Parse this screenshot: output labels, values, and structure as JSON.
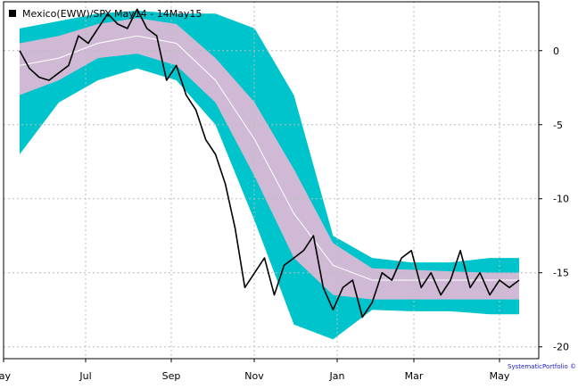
{
  "chart_data": {
    "type": "line",
    "title": "Mexico(EWW)/SPY May14 - 14May15",
    "watermark": "SystematicPortfolio ©",
    "ylim": [
      -20.8,
      3.3
    ],
    "y_ticks": [
      0,
      -5,
      -10,
      -15,
      -20
    ],
    "x_ticks": [
      "ay",
      "Jul",
      "Sep",
      "Nov",
      "Jan",
      "Mar",
      "May"
    ],
    "grid": true,
    "legend": "top-left",
    "colors": {
      "outer_band": "#00c4cc",
      "inner_band": "#cfb9d5",
      "line": "#000000",
      "mid_line": "#ffffff",
      "grid": "#bbbbbb",
      "legend_box": "#000000",
      "watermark": "#1a1acc"
    },
    "series": [
      {
        "name": "Mexico(EWW)/SPY",
        "x": [
          0,
          1,
          2,
          3,
          4,
          5,
          6,
          7,
          8,
          9,
          10,
          11,
          12,
          13,
          14,
          15,
          16,
          17,
          18,
          19,
          20,
          21,
          22,
          23,
          24,
          25,
          26,
          27,
          28,
          29,
          30,
          31,
          32,
          33,
          34,
          35,
          36,
          37,
          38,
          39,
          40,
          41,
          42,
          43,
          44,
          45,
          46,
          47,
          48,
          49,
          50,
          51
        ],
        "values": [
          0,
          -1.2,
          -1.8,
          -2.0,
          -1.5,
          -1.0,
          1.0,
          0.5,
          1.5,
          2.5,
          1.8,
          1.5,
          2.8,
          1.5,
          1.0,
          -2.0,
          -1.0,
          -3.0,
          -4.0,
          -6.0,
          -7.0,
          -9.0,
          -12.0,
          -16.0,
          -15.0,
          -14.0,
          -16.5,
          -14.5,
          -14.0,
          -13.5,
          -12.5,
          -16.0,
          -17.5,
          -16.0,
          -15.5,
          -18.0,
          -17.0,
          -15.0,
          -15.5,
          -14.0,
          -13.5,
          -16.0,
          -15.0,
          -16.5,
          -15.5,
          -13.5,
          -16.0,
          -15.0,
          -16.5,
          -15.5,
          -16.0,
          -15.5
        ]
      }
    ],
    "bands": {
      "x": [
        0,
        4,
        8,
        12,
        16,
        20,
        24,
        28,
        32,
        36,
        40,
        44,
        48,
        51
      ],
      "center": [
        -1.0,
        -0.5,
        0.5,
        1.0,
        0.5,
        -2.0,
        -6.0,
        -11.0,
        -14.5,
        -15.5,
        -15.5,
        -15.5,
        -15.5,
        -15.5
      ],
      "inner_upper": [
        0.5,
        1.0,
        1.8,
        2.2,
        1.8,
        -0.5,
        -3.5,
        -8.0,
        -13.0,
        -14.7,
        -14.8,
        -14.9,
        -15.0,
        -15.0
      ],
      "inner_lower": [
        -3.0,
        -2.0,
        -0.5,
        -0.2,
        -1.0,
        -3.5,
        -8.5,
        -14.0,
        -16.5,
        -16.8,
        -16.8,
        -16.8,
        -16.8,
        -16.8
      ],
      "outer_upper": [
        1.5,
        2.0,
        2.5,
        2.7,
        2.5,
        2.5,
        1.5,
        -3.0,
        -12.5,
        -14.0,
        -14.3,
        -14.3,
        -14.0,
        -14.0
      ],
      "outer_lower": [
        -7.0,
        -3.5,
        -2.0,
        -1.2,
        -2.0,
        -5.0,
        -11.5,
        -18.5,
        -19.5,
        -17.5,
        -17.6,
        -17.6,
        -17.8,
        -17.8
      ]
    }
  }
}
